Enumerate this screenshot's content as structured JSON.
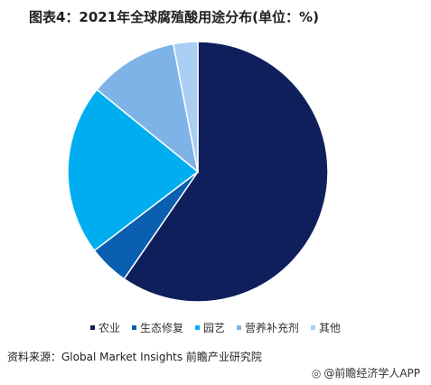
{
  "title": "图表4：2021年全球腐殖酸用途分布(单位：%)",
  "chart_data": {
    "type": "pie",
    "categories": [
      "农业",
      "生态修复",
      "园艺",
      "营养补充剂",
      "其他"
    ],
    "values": [
      59,
      5,
      21,
      11,
      3
    ],
    "colors": [
      "#0f1f5c",
      "#0a5fb0",
      "#00aef0",
      "#7eb3e8",
      "#a9cdf3"
    ],
    "legend_position": "bottom",
    "start_angle_deg": 0,
    "direction": "clockwise"
  },
  "source": "资料来源：Global Market Insights 前瞻产业研究院",
  "footer": {
    "icon": "wechat-icon",
    "text": "@前瞻经济学人APP"
  }
}
